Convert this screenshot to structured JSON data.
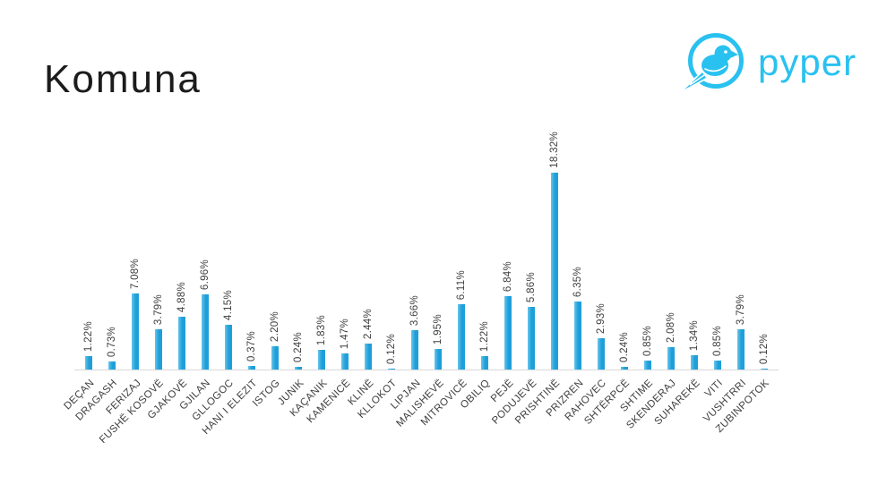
{
  "title": "Komuna",
  "logo": {
    "brand": "pyper",
    "color": "#29c1f0"
  },
  "chart_data": {
    "type": "bar",
    "title": "Komuna",
    "categories": [
      "DEÇAN",
      "DRAGASH",
      "FERIZAJ",
      "FUSHË KOSOVË",
      "GJAKOVË",
      "GJILAN",
      "GLLOGOC",
      "HANI I ELEZIT",
      "ISTOG",
      "JUNIK",
      "KAÇANIK",
      "KAMENICË",
      "KLINË",
      "KLLOKOT",
      "LIPJAN",
      "MALISHEVË",
      "MITROVICË",
      "OBILIQ",
      "PEJË",
      "PODUJEVË",
      "PRISHTINË",
      "PRIZREN",
      "RAHOVEC",
      "SHTËRPCË",
      "SHTIME",
      "SKENDERAJ",
      "SUHAREKË",
      "VITI",
      "VUSHTRRI",
      "ZUBINPOTOK"
    ],
    "values": [
      1.22,
      0.73,
      7.08,
      3.79,
      4.88,
      6.96,
      4.15,
      0.37,
      2.2,
      0.24,
      1.83,
      1.47,
      2.44,
      0.12,
      3.66,
      1.95,
      6.11,
      1.22,
      6.84,
      5.86,
      18.32,
      6.35,
      2.93,
      0.24,
      0.85,
      2.08,
      1.34,
      0.85,
      3.79,
      0.12
    ],
    "value_labels": [
      "1.22%",
      "0.73%",
      "7.08%",
      "3.79%",
      "4.88%",
      "6.96%",
      "4.15%",
      "0.37%",
      "2.20%",
      "0.24%",
      "1.83%",
      "1.47%",
      "2.44%",
      "0.12%",
      "3.66%",
      "1.95%",
      "6.11%",
      "1.22%",
      "6.84%",
      "5.86%",
      "18.32%",
      "6.35%",
      "2.93%",
      "0.24%",
      "0.85%",
      "2.08%",
      "1.34%",
      "0.85%",
      "3.79%",
      "0.12%"
    ],
    "xlabel": "",
    "ylabel": "",
    "ylim": [
      0,
      20
    ],
    "grid": false,
    "legend": null,
    "bar_color": "#1f9fda",
    "bar_highlight": "#66c4ea",
    "axis_line_color": "#d9d9d9",
    "text_color": "#3f3f3f"
  }
}
